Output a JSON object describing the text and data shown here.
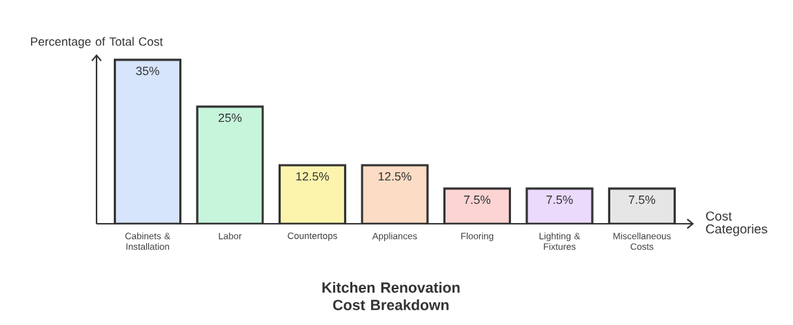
{
  "chart_data": {
    "type": "bar",
    "title": "Kitchen Renovation Cost Breakdown",
    "xlabel": "Cost Categories",
    "ylabel": "Percentage of Total Cost",
    "categories": [
      "Cabinets & Installation",
      "Labor",
      "Countertops",
      "Appliances",
      "Flooring",
      "Lighting & Fixtures",
      "Miscellaneous Costs"
    ],
    "values": [
      35,
      25,
      12.5,
      12.5,
      7.5,
      7.5,
      7.5
    ],
    "value_labels": [
      "35%",
      "25%",
      "12.5%",
      "12.5%",
      "7.5%",
      "7.5%",
      "7.5%"
    ],
    "colors": [
      "#d6e4fc",
      "#c6f5dc",
      "#fcf4ad",
      "#fcdcc4",
      "#fcd4d4",
      "#ecdafc",
      "#e6e6e6"
    ],
    "ylim": [
      0,
      36
    ],
    "tick_labels": "x"
  }
}
